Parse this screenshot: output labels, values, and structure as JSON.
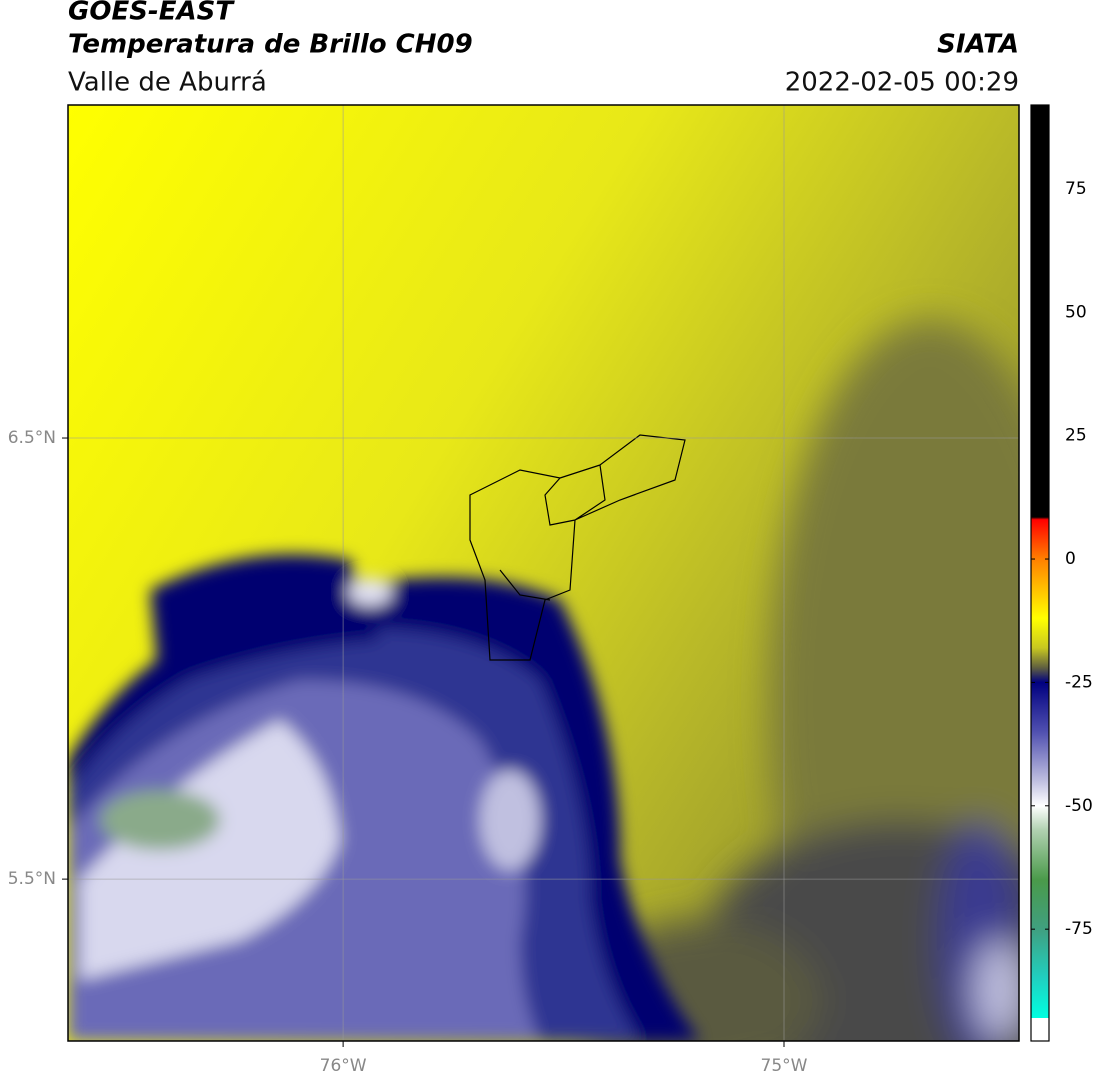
{
  "chart_data": {
    "type": "map",
    "title": "GOES-EAST",
    "subtitle": "Temperatura de Brillo CH09",
    "region": "Valle de Aburrá",
    "source": "SIATA",
    "datetime": "2022-02-05 00:29",
    "xlim": [
      -76.624,
      -74.467
    ],
    "ylim": [
      5.133,
      7.255
    ],
    "xticks": [
      {
        "value": -76,
        "label": "76°W"
      },
      {
        "value": -75,
        "label": "75°W"
      }
    ],
    "yticks": [
      {
        "value": 6.5,
        "label": "6.5°N"
      },
      {
        "value": 5.5,
        "label": "5.5°N"
      }
    ],
    "grid": true,
    "colorbar": {
      "lim": [
        -93,
        92
      ],
      "ticks": [
        75,
        50,
        25,
        0,
        -25,
        -50,
        -75
      ],
      "stops": [
        {
          "value": 92,
          "color": "#000000"
        },
        {
          "value": 8.5,
          "color": "#000000"
        },
        {
          "value": 8,
          "color": "#ff0000"
        },
        {
          "value": 0,
          "color": "#ff8000"
        },
        {
          "value": -12,
          "color": "#ffff00"
        },
        {
          "value": -18,
          "color": "#c8c820"
        },
        {
          "value": -22,
          "color": "#606040"
        },
        {
          "value": -25,
          "color": "#000080"
        },
        {
          "value": -35,
          "color": "#5050b0"
        },
        {
          "value": -45,
          "color": "#c0c0e0"
        },
        {
          "value": -50,
          "color": "#ffffff"
        },
        {
          "value": -55,
          "color": "#b0d0b0"
        },
        {
          "value": -65,
          "color": "#4a9a4a"
        },
        {
          "value": -75,
          "color": "#40a080"
        },
        {
          "value": -85,
          "color": "#20d0c0"
        },
        {
          "value": -93,
          "color": "#00ffe0"
        }
      ]
    }
  }
}
